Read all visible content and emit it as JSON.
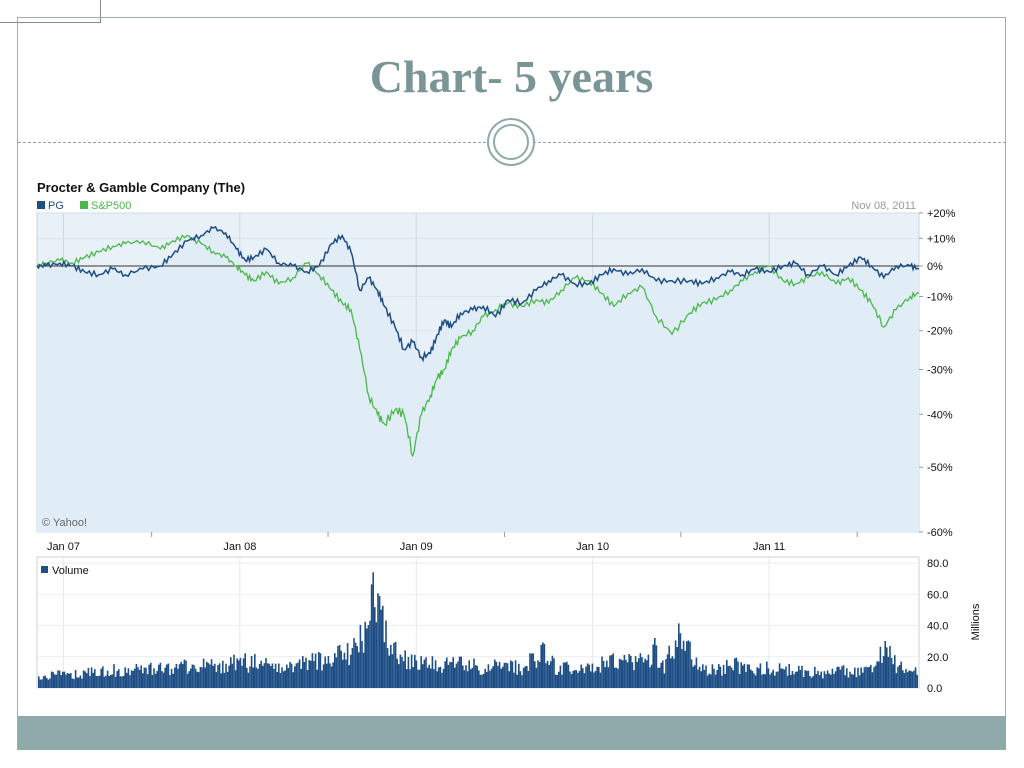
{
  "slide": {
    "title": "Chart- 5 years",
    "accent_color": "#7a9595",
    "footer_color": "#8faaaa"
  },
  "chart_data": [
    {
      "type": "line",
      "title": "Procter & Gamble Company (The)",
      "date_label": "Nov 08, 2011",
      "watermark": "© Yahoo!",
      "x_tick_labels": [
        "Jan 07",
        "Jan 08",
        "Jan 09",
        "Jan 10",
        "Jan 11"
      ],
      "y_tick_labels": [
        "+20%",
        "+10%",
        "0%",
        "-10%",
        "-20%",
        "-30%",
        "-40%",
        "-50%",
        "-60%"
      ],
      "y_tick_values": [
        20,
        10,
        0,
        -10,
        -20,
        -30,
        -40,
        -50,
        -60
      ],
      "y_scale": "log",
      "ylim": [
        -60,
        20
      ],
      "xlim": [
        2006.85,
        2011.85
      ],
      "legend_position": "top-left",
      "series": [
        {
          "name": "PG",
          "color": "#1f4e85",
          "x": [
            2006.85,
            2006.9,
            2006.98,
            2007.05,
            2007.12,
            2007.2,
            2007.28,
            2007.35,
            2007.45,
            2007.55,
            2007.62,
            2007.7,
            2007.78,
            2007.85,
            2007.92,
            2007.98,
            2008.03,
            2008.08,
            2008.15,
            2008.22,
            2008.3,
            2008.38,
            2008.45,
            2008.52,
            2008.58,
            2008.63,
            2008.68,
            2008.73,
            2008.78,
            2008.82,
            2008.88,
            2008.93,
            2008.98,
            2009.03,
            2009.08,
            2009.12,
            2009.16,
            2009.2,
            2009.25,
            2009.32,
            2009.38,
            2009.45,
            2009.52,
            2009.6,
            2009.68,
            2009.75,
            2009.82,
            2009.9,
            2009.98,
            2010.05,
            2010.12,
            2010.2,
            2010.28,
            2010.36,
            2010.45,
            2010.55,
            2010.62,
            2010.7,
            2010.78,
            2010.85,
            2010.92,
            2011.0,
            2011.08,
            2011.15,
            2011.22,
            2011.3,
            2011.38,
            2011.45,
            2011.52,
            2011.58,
            2011.65,
            2011.72,
            2011.8,
            2011.85
          ],
          "values": [
            0,
            0,
            1,
            0,
            -2,
            -3,
            -1,
            -3,
            -1,
            0,
            4,
            9,
            11,
            14,
            12,
            6,
            2,
            3,
            6,
            1,
            0,
            -2,
            0,
            8,
            11,
            5,
            -8,
            -4,
            -8,
            -13,
            -19,
            -25,
            -23,
            -27,
            -26,
            -21,
            -17,
            -19,
            -15,
            -14,
            -13,
            -16,
            -11,
            -12,
            -8,
            -5,
            -3,
            -6,
            -6,
            -3,
            -1,
            -3,
            -1,
            -5,
            -5,
            -5,
            -6,
            -4,
            -2,
            -3,
            -1,
            -2,
            0,
            1,
            -3,
            0,
            -3,
            0,
            3,
            0,
            -4,
            0,
            0,
            -1
          ]
        },
        {
          "name": "S&P500",
          "color": "#4cb84c",
          "x": [
            2006.85,
            2006.9,
            2006.98,
            2007.05,
            2007.12,
            2007.2,
            2007.28,
            2007.35,
            2007.45,
            2007.55,
            2007.62,
            2007.7,
            2007.78,
            2007.85,
            2007.92,
            2007.98,
            2008.03,
            2008.08,
            2008.15,
            2008.22,
            2008.3,
            2008.38,
            2008.45,
            2008.52,
            2008.58,
            2008.63,
            2008.68,
            2008.73,
            2008.78,
            2008.82,
            2008.88,
            2008.93,
            2008.98,
            2009.03,
            2009.08,
            2009.12,
            2009.16,
            2009.2,
            2009.25,
            2009.32,
            2009.38,
            2009.45,
            2009.52,
            2009.6,
            2009.68,
            2009.75,
            2009.82,
            2009.9,
            2009.98,
            2010.05,
            2010.12,
            2010.2,
            2010.28,
            2010.36,
            2010.45,
            2010.55,
            2010.62,
            2010.7,
            2010.78,
            2010.85,
            2010.92,
            2011.0,
            2011.08,
            2011.15,
            2011.22,
            2011.3,
            2011.38,
            2011.45,
            2011.52,
            2011.58,
            2011.65,
            2011.72,
            2011.8,
            2011.85
          ],
          "values": [
            0,
            1,
            2,
            1,
            3,
            5,
            7,
            8,
            9,
            6,
            9,
            11,
            8,
            5,
            3,
            0,
            -3,
            -5,
            -2,
            -6,
            -4,
            1,
            -3,
            -8,
            -12,
            -14,
            -25,
            -36,
            -40,
            -42,
            -39,
            -40,
            -48,
            -40,
            -36,
            -32,
            -30,
            -25,
            -22,
            -20,
            -16,
            -14,
            -12,
            -13,
            -11,
            -12,
            -8,
            -4,
            -5,
            -9,
            -13,
            -9,
            -7,
            -16,
            -21,
            -15,
            -12,
            -11,
            -8,
            -5,
            -2,
            0,
            -5,
            -6,
            -4,
            -2,
            -6,
            -4,
            -8,
            -12,
            -19,
            -14,
            -10,
            -9
          ]
        }
      ]
    },
    {
      "type": "bar",
      "title": "",
      "series_name": "Volume",
      "color": "#1f4e85",
      "y_tick_labels": [
        "80.0",
        "60.0",
        "40.0",
        "20.0",
        "0.0"
      ],
      "y_tick_values": [
        80,
        60,
        40,
        20,
        0
      ],
      "ylabel": "Millions",
      "ylim": [
        0,
        80
      ],
      "xlim": [
        2006.85,
        2011.85
      ],
      "x": [
        2006.85,
        2006.95,
        2007.1,
        2007.25,
        2007.4,
        2007.55,
        2007.7,
        2007.85,
        2008.0,
        2008.15,
        2008.3,
        2008.45,
        2008.55,
        2008.6,
        2008.65,
        2008.7,
        2008.72,
        2008.75,
        2008.78,
        2008.8,
        2008.82,
        2008.85,
        2008.9,
        2009.0,
        2009.1,
        2009.2,
        2009.3,
        2009.4,
        2009.5,
        2009.6,
        2009.7,
        2009.8,
        2009.9,
        2010.0,
        2010.1,
        2010.2,
        2010.3,
        2010.35,
        2010.4,
        2010.5,
        2010.6,
        2010.7,
        2010.8,
        2010.9,
        2011.0,
        2011.1,
        2011.2,
        2011.3,
        2011.4,
        2011.5,
        2011.6,
        2011.65,
        2011.7,
        2011.8,
        2011.85
      ],
      "values": [
        8,
        9,
        10,
        12,
        13,
        14,
        15,
        16,
        18,
        17,
        16,
        20,
        22,
        25,
        30,
        38,
        44,
        72,
        60,
        45,
        38,
        30,
        22,
        20,
        18,
        17,
        16,
        15,
        15,
        14,
        26,
        13,
        14,
        16,
        18,
        20,
        17,
        27,
        15,
        44,
        14,
        13,
        16,
        12,
        14,
        13,
        12,
        11,
        12,
        11,
        13,
        32,
        18,
        14,
        8
      ]
    }
  ]
}
